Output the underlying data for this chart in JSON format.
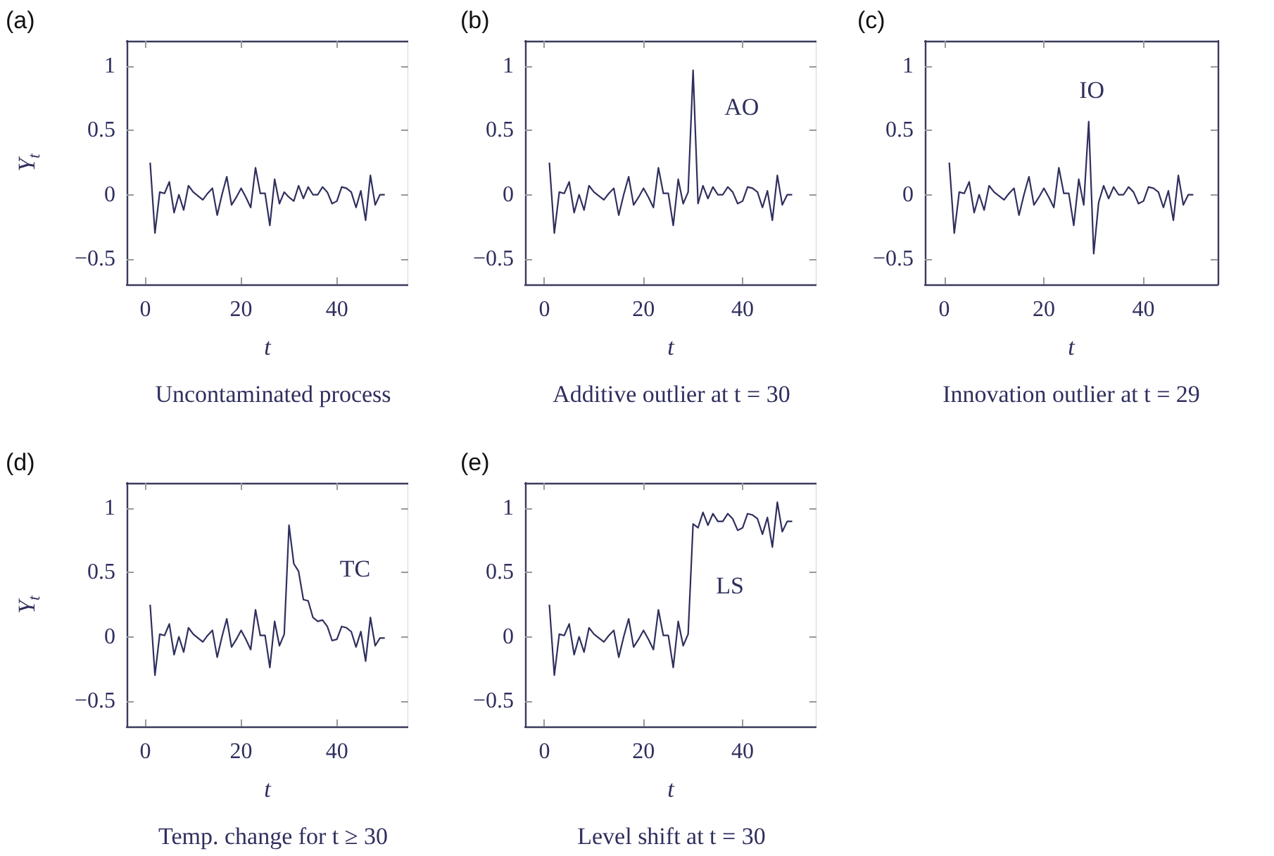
{
  "chart_data": [
    {
      "type": "line",
      "title": "(a)",
      "xlabel": "t",
      "ylabel": "Y$_{t}$",
      "annotations": [
        "Uncontaminated process"
      ],
      "xlim": [
        -3.9,
        54.9
      ],
      "xticks": [
        0,
        20,
        40
      ],
      "ylim": [
        -0.7,
        1.2
      ],
      "yticks": [
        -0.5,
        0,
        0.5,
        1
      ],
      "x": [
        1,
        2,
        3,
        4,
        5,
        6,
        7,
        8,
        9,
        10,
        11,
        12,
        13,
        14,
        15,
        16,
        17,
        18,
        19,
        20,
        21,
        22,
        23,
        24,
        25,
        26,
        27,
        28,
        29,
        30,
        31,
        32,
        33,
        34,
        35,
        36,
        37,
        38,
        39,
        40,
        41,
        42,
        43,
        44,
        45,
        46,
        47,
        48,
        49,
        50
      ],
      "series": [
        {
          "color": "#2f2f5f",
          "values": [
            0.25,
            -0.3,
            0.02,
            0.01,
            0.1,
            -0.14,
            0.0,
            -0.12,
            0.07,
            0.02,
            -0.01,
            -0.04,
            0.01,
            0.05,
            -0.16,
            0.0,
            0.14,
            -0.08,
            -0.02,
            0.05,
            -0.02,
            -0.1,
            0.21,
            0.01,
            0.01,
            -0.24,
            0.12,
            -0.07,
            0.02,
            -0.02,
            -0.05,
            0.07,
            -0.03,
            0.06,
            0.0,
            0.0,
            0.06,
            0.02,
            -0.07,
            -0.05,
            0.06,
            0.05,
            0.02,
            -0.1,
            0.03,
            -0.2,
            0.15,
            -0.08,
            0.0,
            0.0
          ]
        }
      ]
    },
    {
      "type": "line",
      "title": "(b)",
      "xlabel": "t",
      "annotations": [
        "AO",
        "Additive outlier at t = 30"
      ],
      "xlim": [
        -3.9,
        54.9
      ],
      "xticks": [
        0,
        20,
        40
      ],
      "ylim": [
        -0.7,
        1.2
      ],
      "yticks": [
        -0.5,
        0,
        0.5,
        1
      ],
      "x": [
        1,
        2,
        3,
        4,
        5,
        6,
        7,
        8,
        9,
        10,
        11,
        12,
        13,
        14,
        15,
        16,
        17,
        18,
        19,
        20,
        21,
        22,
        23,
        24,
        25,
        26,
        27,
        28,
        29,
        30,
        31,
        32,
        33,
        34,
        35,
        36,
        37,
        38,
        39,
        40,
        41,
        42,
        43,
        44,
        45,
        46,
        47,
        48,
        49,
        50
      ],
      "series": [
        {
          "color": "#2f2f5f",
          "values": [
            0.25,
            -0.3,
            0.02,
            0.01,
            0.1,
            -0.14,
            0.0,
            -0.12,
            0.07,
            0.02,
            -0.01,
            -0.04,
            0.01,
            0.05,
            -0.16,
            0.0,
            0.14,
            -0.08,
            -0.02,
            0.05,
            -0.02,
            -0.1,
            0.21,
            0.01,
            0.01,
            -0.24,
            0.12,
            -0.07,
            0.02,
            0.97,
            -0.07,
            0.07,
            -0.03,
            0.06,
            0.0,
            0.0,
            0.06,
            0.02,
            -0.07,
            -0.05,
            0.06,
            0.05,
            0.02,
            -0.1,
            0.03,
            -0.2,
            0.15,
            -0.08,
            0.0,
            0.0
          ]
        }
      ]
    },
    {
      "type": "line",
      "title": "(c)",
      "xlabel": "t",
      "annotations": [
        "IO",
        "Innovation outlier at t = 29"
      ],
      "xlim": [
        -3.9,
        54.9
      ],
      "xticks": [
        0,
        20,
        40
      ],
      "ylim": [
        -0.7,
        1.2
      ],
      "yticks": [
        -0.5,
        0,
        0.5,
        1
      ],
      "x": [
        1,
        2,
        3,
        4,
        5,
        6,
        7,
        8,
        9,
        10,
        11,
        12,
        13,
        14,
        15,
        16,
        17,
        18,
        19,
        20,
        21,
        22,
        23,
        24,
        25,
        26,
        27,
        28,
        29,
        30,
        31,
        32,
        33,
        34,
        35,
        36,
        37,
        38,
        39,
        40,
        41,
        42,
        43,
        44,
        45,
        46,
        47,
        48,
        49,
        50
      ],
      "series": [
        {
          "color": "#2f2f5f",
          "values": [
            0.25,
            -0.3,
            0.02,
            0.01,
            0.1,
            -0.14,
            0.0,
            -0.12,
            0.07,
            0.02,
            -0.01,
            -0.04,
            0.01,
            0.05,
            -0.16,
            0.0,
            0.14,
            -0.08,
            -0.02,
            0.05,
            -0.02,
            -0.1,
            0.21,
            0.01,
            0.01,
            -0.24,
            0.12,
            -0.08,
            0.57,
            -0.46,
            -0.06,
            0.07,
            -0.03,
            0.06,
            0.0,
            0.0,
            0.06,
            0.02,
            -0.07,
            -0.05,
            0.06,
            0.05,
            0.02,
            -0.1,
            0.03,
            -0.2,
            0.15,
            -0.08,
            0.0,
            0.0
          ]
        }
      ]
    },
    {
      "type": "line",
      "title": "(d)",
      "xlabel": "t",
      "ylabel": "Y$_{t}$",
      "annotations": [
        "TC",
        "Temp. change for t ≥ 30"
      ],
      "xlim": [
        -3.9,
        54.9
      ],
      "xticks": [
        0,
        20,
        40
      ],
      "ylim": [
        -0.7,
        1.2
      ],
      "yticks": [
        -0.5,
        0,
        0.5,
        1
      ],
      "x": [
        1,
        2,
        3,
        4,
        5,
        6,
        7,
        8,
        9,
        10,
        11,
        12,
        13,
        14,
        15,
        16,
        17,
        18,
        19,
        20,
        21,
        22,
        23,
        24,
        25,
        26,
        27,
        28,
        29,
        30,
        31,
        32,
        33,
        34,
        35,
        36,
        37,
        38,
        39,
        40,
        41,
        42,
        43,
        44,
        45,
        46,
        47,
        48,
        49,
        50
      ],
      "series": [
        {
          "color": "#2f2f5f",
          "values": [
            0.25,
            -0.3,
            0.02,
            0.01,
            0.1,
            -0.14,
            0.0,
            -0.12,
            0.07,
            0.02,
            -0.01,
            -0.04,
            0.01,
            0.05,
            -0.16,
            0.0,
            0.14,
            -0.08,
            -0.02,
            0.05,
            -0.02,
            -0.1,
            0.21,
            0.01,
            0.01,
            -0.24,
            0.12,
            -0.07,
            0.02,
            0.87,
            0.57,
            0.51,
            0.29,
            0.28,
            0.15,
            0.12,
            0.13,
            0.08,
            -0.03,
            -0.02,
            0.08,
            0.07,
            0.04,
            -0.08,
            0.04,
            -0.19,
            0.15,
            -0.07,
            -0.01,
            -0.01
          ]
        }
      ]
    },
    {
      "type": "line",
      "title": "(e)",
      "xlabel": "t",
      "annotations": [
        "LS",
        "Level shift at t = 30"
      ],
      "xlim": [
        -3.9,
        54.9
      ],
      "xticks": [
        0,
        20,
        40
      ],
      "ylim": [
        -0.7,
        1.2
      ],
      "yticks": [
        -0.5,
        0,
        0.5,
        1
      ],
      "x": [
        1,
        2,
        3,
        4,
        5,
        6,
        7,
        8,
        9,
        10,
        11,
        12,
        13,
        14,
        15,
        16,
        17,
        18,
        19,
        20,
        21,
        22,
        23,
        24,
        25,
        26,
        27,
        28,
        29,
        30,
        31,
        32,
        33,
        34,
        35,
        36,
        37,
        38,
        39,
        40,
        41,
        42,
        43,
        44,
        45,
        46,
        47,
        48,
        49,
        50
      ],
      "series": [
        {
          "color": "#2f2f5f",
          "values": [
            0.25,
            -0.3,
            0.02,
            0.01,
            0.1,
            -0.14,
            0.0,
            -0.12,
            0.07,
            0.02,
            -0.01,
            -0.04,
            0.01,
            0.05,
            -0.16,
            0.0,
            0.14,
            -0.08,
            -0.02,
            0.05,
            -0.02,
            -0.1,
            0.21,
            0.01,
            0.01,
            -0.24,
            0.12,
            -0.07,
            0.02,
            0.88,
            0.85,
            0.97,
            0.87,
            0.96,
            0.9,
            0.9,
            0.96,
            0.92,
            0.83,
            0.85,
            0.96,
            0.95,
            0.92,
            0.8,
            0.93,
            0.7,
            1.05,
            0.82,
            0.9,
            0.9
          ]
        }
      ]
    }
  ]
}
